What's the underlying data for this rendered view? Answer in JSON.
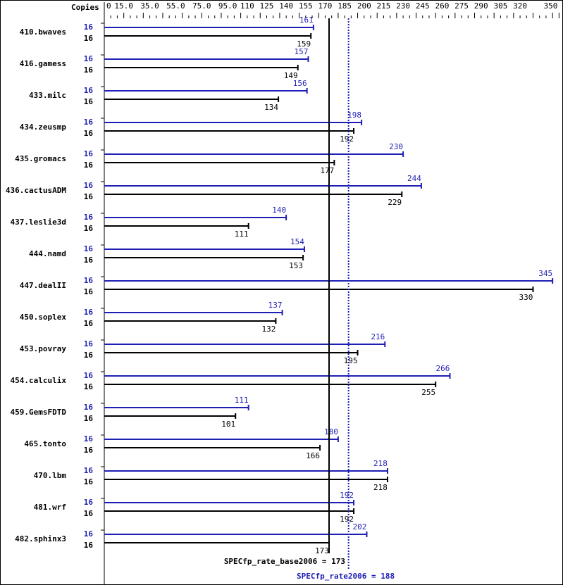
{
  "chart_data": {
    "type": "bar",
    "orientation": "horizontal",
    "axis_label": "Copies",
    "xlim": [
      0,
      350
    ],
    "ticks": [
      "0",
      "15.0",
      "35.0",
      "55.0",
      "75.0",
      "95.0",
      "110",
      "125",
      "140",
      "155",
      "170",
      "185",
      "200",
      "215",
      "230",
      "245",
      "260",
      "275",
      "290",
      "305",
      "320",
      "350"
    ],
    "tick_values": [
      0,
      15,
      35,
      55,
      75,
      95,
      110,
      125,
      140,
      155,
      170,
      185,
      200,
      215,
      230,
      245,
      260,
      275,
      290,
      305,
      320,
      350
    ],
    "categories": [
      "410.bwaves",
      "416.gamess",
      "433.milc",
      "434.zeusmp",
      "435.gromacs",
      "436.cactusADM",
      "437.leslie3d",
      "444.namd",
      "447.dealII",
      "450.soplex",
      "453.povray",
      "454.calculix",
      "459.GemsFDTD",
      "465.tonto",
      "470.lbm",
      "481.wrf",
      "482.sphinx3"
    ],
    "series": [
      {
        "name": "SPECfp_rate2006",
        "color": "#1f1fb4",
        "copies": 16,
        "values": [
          161,
          157,
          156,
          198,
          230,
          244,
          140,
          154,
          345,
          137,
          216,
          266,
          111,
          180,
          218,
          192,
          202
        ]
      },
      {
        "name": "SPECfp_rate_base2006",
        "color": "#000000",
        "copies": 16,
        "values": [
          159,
          149,
          134,
          192,
          177,
          229,
          111,
          153,
          330,
          132,
          195,
          255,
          101,
          166,
          218,
          192,
          173
        ]
      }
    ],
    "reference_lines": [
      {
        "label": "SPECfp_rate_base2006 = 173",
        "value": 173,
        "color": "#000000",
        "style": "solid"
      },
      {
        "label": "SPECfp_rate2006 = 188",
        "value": 188,
        "color": "#1f1fb4",
        "style": "dotted"
      }
    ]
  }
}
